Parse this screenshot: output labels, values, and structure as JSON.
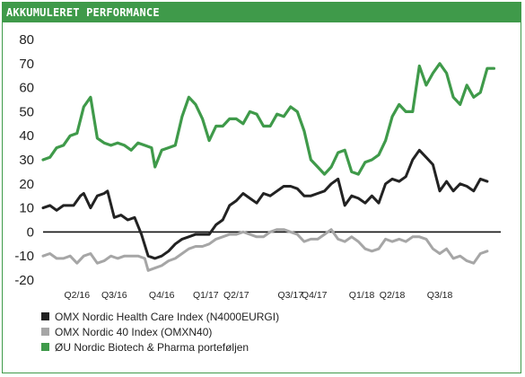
{
  "header": {
    "title": "AKKUMULERET PERFORMANCE"
  },
  "chart_data": {
    "type": "line",
    "title": "AKKUMULERET PERFORMANCE",
    "xlabel": "",
    "ylabel": "",
    "ylim": [
      -20,
      80
    ],
    "yticks": [
      -20,
      -10,
      0,
      10,
      20,
      30,
      40,
      50,
      60,
      70,
      80
    ],
    "grid": false,
    "legend": "bottom",
    "x_range": [
      0,
      135
    ],
    "x_ticks": [
      {
        "label": "Q2/16",
        "x": 10
      },
      {
        "label": "Q3/16",
        "x": 21
      },
      {
        "label": "Q4/16",
        "x": 35
      },
      {
        "label": "Q1/17",
        "x": 48
      },
      {
        "label": "Q2/17",
        "x": 57
      },
      {
        "label": "Q3/17",
        "x": 73
      },
      {
        "label": "Q4/17",
        "x": 80
      },
      {
        "label": "Q1/18",
        "x": 94
      },
      {
        "label": "Q2/18",
        "x": 103
      },
      {
        "label": "Q3/18",
        "x": 117
      }
    ],
    "series": [
      {
        "name": "OMX Nordic Health Care Index (N4000EURGI)",
        "color": "#222222",
        "points": [
          [
            0,
            10
          ],
          [
            2,
            11
          ],
          [
            4,
            9
          ],
          [
            6,
            11
          ],
          [
            9,
            11
          ],
          [
            11,
            15
          ],
          [
            12,
            16
          ],
          [
            14,
            10
          ],
          [
            16,
            15
          ],
          [
            18,
            16
          ],
          [
            19,
            17
          ],
          [
            21,
            6
          ],
          [
            23,
            7
          ],
          [
            25,
            5
          ],
          [
            27,
            6
          ],
          [
            29,
            -1
          ],
          [
            31,
            -10
          ],
          [
            33,
            -11
          ],
          [
            35,
            -10
          ],
          [
            37,
            -8
          ],
          [
            39,
            -5
          ],
          [
            41,
            -3
          ],
          [
            43,
            -2
          ],
          [
            45,
            -1
          ],
          [
            47,
            -1
          ],
          [
            49,
            -1
          ],
          [
            51,
            3
          ],
          [
            53,
            5
          ],
          [
            55,
            11
          ],
          [
            57,
            13
          ],
          [
            59,
            16
          ],
          [
            61,
            14
          ],
          [
            63,
            12
          ],
          [
            65,
            16
          ],
          [
            67,
            15
          ],
          [
            69,
            17
          ],
          [
            71,
            19
          ],
          [
            73,
            19
          ],
          [
            75,
            18
          ],
          [
            77,
            15
          ],
          [
            79,
            15
          ],
          [
            81,
            16
          ],
          [
            83,
            17
          ],
          [
            85,
            20
          ],
          [
            87,
            22
          ],
          [
            89,
            11
          ],
          [
            91,
            15
          ],
          [
            93,
            14
          ],
          [
            95,
            12
          ],
          [
            97,
            15
          ],
          [
            99,
            12
          ],
          [
            101,
            20
          ],
          [
            103,
            22
          ],
          [
            105,
            21
          ],
          [
            107,
            23
          ],
          [
            109,
            30
          ],
          [
            111,
            34
          ],
          [
            113,
            31
          ],
          [
            115,
            28
          ],
          [
            117,
            17
          ],
          [
            119,
            21
          ],
          [
            121,
            17
          ],
          [
            123,
            20
          ],
          [
            125,
            19
          ],
          [
            127,
            17
          ],
          [
            129,
            22
          ],
          [
            131,
            21
          ]
        ]
      },
      {
        "name": "OMX Nordic 40 Index (OMXN40)",
        "color": "#a6a6a6",
        "points": [
          [
            0,
            -10
          ],
          [
            2,
            -9
          ],
          [
            4,
            -11
          ],
          [
            6,
            -11
          ],
          [
            8,
            -10
          ],
          [
            10,
            -13
          ],
          [
            12,
            -10
          ],
          [
            14,
            -9
          ],
          [
            16,
            -13
          ],
          [
            18,
            -12
          ],
          [
            20,
            -10
          ],
          [
            22,
            -11
          ],
          [
            24,
            -10
          ],
          [
            26,
            -10
          ],
          [
            28,
            -10
          ],
          [
            30,
            -11
          ],
          [
            31,
            -16
          ],
          [
            33,
            -15
          ],
          [
            35,
            -14
          ],
          [
            37,
            -12
          ],
          [
            39,
            -11
          ],
          [
            41,
            -9
          ],
          [
            43,
            -7
          ],
          [
            45,
            -6
          ],
          [
            47,
            -6
          ],
          [
            49,
            -5
          ],
          [
            51,
            -3
          ],
          [
            53,
            -2
          ],
          [
            55,
            -1
          ],
          [
            57,
            -1
          ],
          [
            59,
            0
          ],
          [
            61,
            -1
          ],
          [
            63,
            -2
          ],
          [
            65,
            -2
          ],
          [
            67,
            0
          ],
          [
            69,
            1
          ],
          [
            71,
            1
          ],
          [
            73,
            0
          ],
          [
            75,
            -1
          ],
          [
            77,
            -4
          ],
          [
            79,
            -3
          ],
          [
            81,
            -3
          ],
          [
            83,
            -1
          ],
          [
            85,
            1
          ],
          [
            87,
            -3
          ],
          [
            89,
            -4
          ],
          [
            91,
            -2
          ],
          [
            93,
            -4
          ],
          [
            95,
            -7
          ],
          [
            97,
            -8
          ],
          [
            99,
            -7
          ],
          [
            101,
            -3
          ],
          [
            103,
            -4
          ],
          [
            105,
            -3
          ],
          [
            107,
            -4
          ],
          [
            109,
            -2
          ],
          [
            111,
            -2
          ],
          [
            113,
            -3
          ],
          [
            115,
            -7
          ],
          [
            117,
            -9
          ],
          [
            119,
            -7
          ],
          [
            121,
            -11
          ],
          [
            123,
            -10
          ],
          [
            125,
            -12
          ],
          [
            127,
            -13
          ],
          [
            129,
            -9
          ],
          [
            131,
            -8
          ]
        ]
      },
      {
        "name": "ØU Nordic Biotech & Pharma porteføljen",
        "color": "#3f9a4a",
        "points": [
          [
            0,
            30
          ],
          [
            2,
            31
          ],
          [
            4,
            35
          ],
          [
            6,
            36
          ],
          [
            8,
            40
          ],
          [
            10,
            41
          ],
          [
            12,
            52
          ],
          [
            14,
            56
          ],
          [
            16,
            39
          ],
          [
            18,
            37
          ],
          [
            20,
            36
          ],
          [
            22,
            37
          ],
          [
            24,
            36
          ],
          [
            26,
            34
          ],
          [
            28,
            37
          ],
          [
            30,
            36
          ],
          [
            32,
            35
          ],
          [
            33,
            27
          ],
          [
            35,
            34
          ],
          [
            37,
            35
          ],
          [
            39,
            36
          ],
          [
            41,
            48
          ],
          [
            43,
            56
          ],
          [
            45,
            53
          ],
          [
            47,
            47
          ],
          [
            49,
            38
          ],
          [
            51,
            44
          ],
          [
            53,
            44
          ],
          [
            55,
            47
          ],
          [
            57,
            47
          ],
          [
            59,
            45
          ],
          [
            61,
            50
          ],
          [
            63,
            49
          ],
          [
            65,
            44
          ],
          [
            67,
            44
          ],
          [
            69,
            49
          ],
          [
            71,
            48
          ],
          [
            73,
            52
          ],
          [
            75,
            50
          ],
          [
            77,
            42
          ],
          [
            79,
            30
          ],
          [
            81,
            27
          ],
          [
            83,
            24
          ],
          [
            85,
            27
          ],
          [
            87,
            33
          ],
          [
            89,
            34
          ],
          [
            91,
            25
          ],
          [
            93,
            24
          ],
          [
            95,
            29
          ],
          [
            97,
            30
          ],
          [
            99,
            32
          ],
          [
            101,
            38
          ],
          [
            103,
            48
          ],
          [
            105,
            53
          ],
          [
            107,
            50
          ],
          [
            109,
            50
          ],
          [
            111,
            69
          ],
          [
            113,
            61
          ],
          [
            115,
            66
          ],
          [
            117,
            70
          ],
          [
            119,
            66
          ],
          [
            121,
            56
          ],
          [
            123,
            53
          ],
          [
            125,
            61
          ],
          [
            127,
            56
          ],
          [
            129,
            58
          ],
          [
            131,
            68
          ],
          [
            133,
            68
          ]
        ]
      }
    ]
  }
}
